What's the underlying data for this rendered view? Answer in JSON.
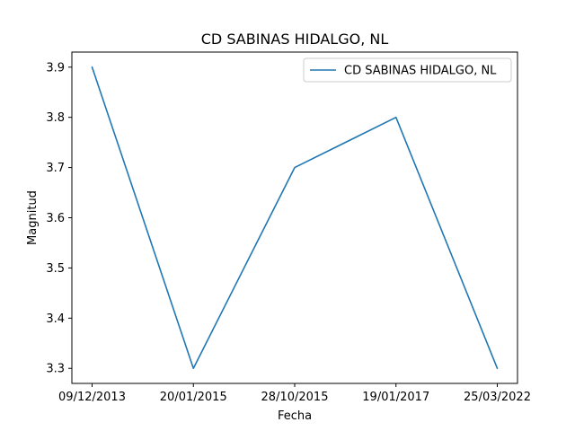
{
  "chart_data": {
    "type": "line",
    "title": "CD SABINAS HIDALGO, NL",
    "xlabel": "Fecha",
    "ylabel": "Magnitud",
    "categories": [
      "09/12/2013",
      "20/01/2015",
      "28/10/2015",
      "19/01/2017",
      "25/03/2022"
    ],
    "series": [
      {
        "name": "CD SABINAS HIDALGO, NL",
        "values": [
          3.9,
          3.3,
          3.7,
          3.8,
          3.3
        ]
      }
    ],
    "ylim": [
      3.27,
      3.93
    ],
    "yticks": [
      "3.3",
      "3.4",
      "3.5",
      "3.6",
      "3.7",
      "3.8",
      "3.9"
    ],
    "grid": false,
    "legend_position": "top-right",
    "colors": {
      "series": "#1f77b4"
    }
  }
}
